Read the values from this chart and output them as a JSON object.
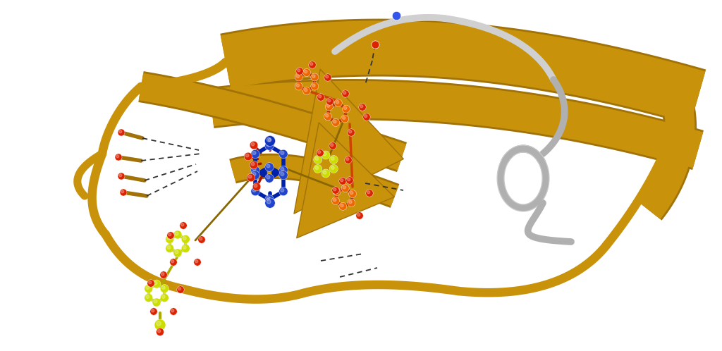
{
  "background_color": "#ffffff",
  "figure_width": 10.24,
  "figure_height": 4.98,
  "dpi": 100,
  "gold_color": "#C8920A",
  "gold_dark": "#A07208",
  "grey_color": "#B0B0B0",
  "grey_light": "#D0D0D0",
  "blue_atom": "#2244CC",
  "red_atom": "#DD2200",
  "orange_atom": "#EE6600",
  "yellow_atom": "#CCDD00",
  "hbond_color": "#333333"
}
